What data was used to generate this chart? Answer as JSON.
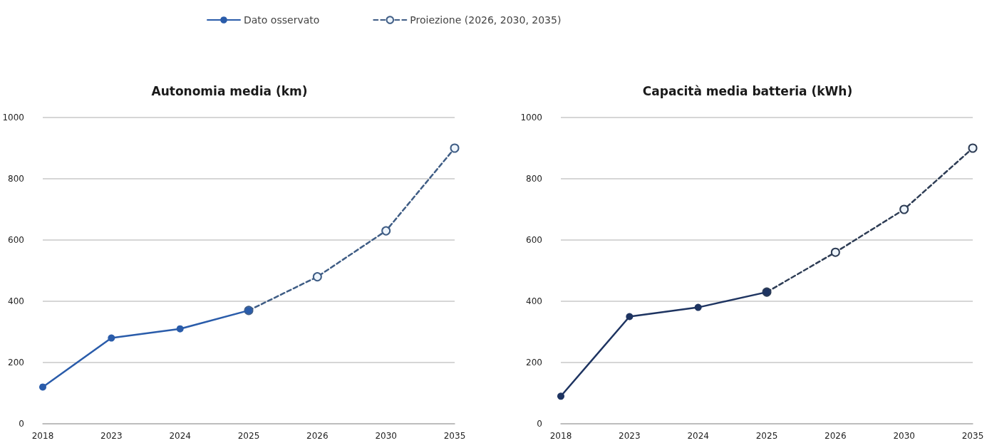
{
  "chart_data": [
    {
      "type": "line",
      "title": "Autonomia media (km)",
      "categories": [
        "2018",
        "2023",
        "2024",
        "2025",
        "2026",
        "2030",
        "2035"
      ],
      "series": [
        {
          "name": "Dato osservato",
          "color": "#2a5caa",
          "values": [
            120,
            280,
            310,
            370,
            null,
            null,
            null
          ],
          "line_style": "solid",
          "marker": "circle"
        },
        {
          "name": "Proiezione (2026, 2030, 2035)",
          "color": "#3f5d85",
          "values": [
            null,
            null,
            null,
            370,
            480,
            630,
            900
          ],
          "line_style": "dashed",
          "marker": "circle"
        }
      ],
      "ylim": [
        0,
        1000
      ],
      "yticks": [
        0,
        200,
        400,
        600,
        800,
        1000
      ],
      "grid": "y",
      "legend": "top"
    },
    {
      "type": "line",
      "title": "Capacità media batteria (kWh)",
      "categories": [
        "2018",
        "2023",
        "2024",
        "2025",
        "2026",
        "2030",
        "2035"
      ],
      "series": [
        {
          "color": "#1e3461",
          "values": [
            90,
            350,
            380,
            430,
            null,
            null,
            null
          ],
          "line_style": "solid",
          "marker": "circle"
        },
        {
          "color": "#2e3d55",
          "values": [
            null,
            null,
            null,
            430,
            560,
            700,
            900
          ],
          "line_style": "dashed",
          "marker": "circle"
        }
      ],
      "ylim": [
        0,
        1000
      ],
      "yticks": [
        0,
        200,
        400,
        600,
        800,
        1000
      ],
      "grid": "y"
    }
  ]
}
